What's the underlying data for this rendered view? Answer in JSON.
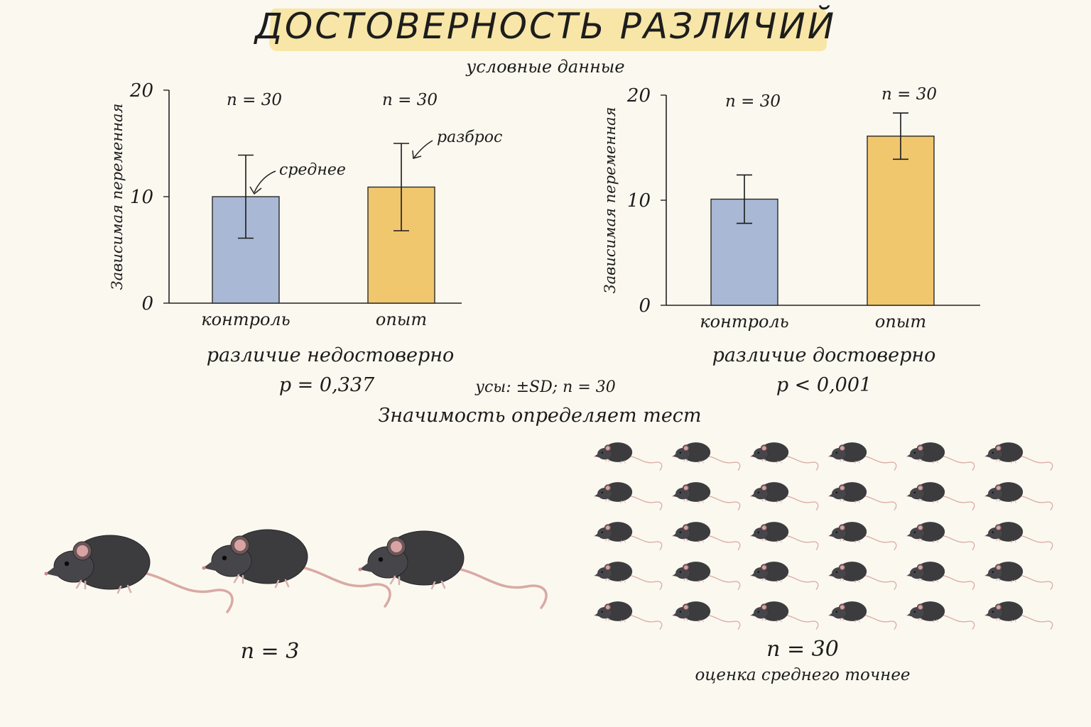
{
  "title": "ДОСТОВЕРНОСТЬ РАЗЛИЧИЙ",
  "subtitle": "условные данные",
  "chart_data": [
    {
      "type": "bar",
      "ylabel": "Зависимая переменная",
      "ylim": [
        0,
        20
      ],
      "yticks": [
        0,
        10,
        20
      ],
      "categories": [
        "контроль",
        "опыт"
      ],
      "values": [
        10,
        10.9
      ],
      "error": [
        3.9,
        4.1
      ],
      "n_labels": [
        "n = 30",
        "n = 30"
      ],
      "colors": [
        "#a9b8d4",
        "#f1c76e"
      ],
      "annotations": [
        "среднее",
        "разброс"
      ],
      "caption": "различие недостоверно",
      "p_value": "p = 0,337"
    },
    {
      "type": "bar",
      "ylabel": "Зависимая переменная",
      "ylim": [
        0,
        20
      ],
      "yticks": [
        0,
        10,
        20
      ],
      "categories": [
        "контроль",
        "опыт"
      ],
      "values": [
        10.1,
        16.1
      ],
      "error": [
        2.3,
        2.2
      ],
      "n_labels": [
        "n = 30",
        "n = 30"
      ],
      "colors": [
        "#a9b8d4",
        "#f1c76e"
      ],
      "caption": "различие достоверно",
      "p_value": "p < 0,001"
    }
  ],
  "whisker_note": "усы: ±SD;  n = 30",
  "significance_note": "Значимость определяет тест",
  "mice_small": {
    "count": 3,
    "label": "n = 3"
  },
  "mice_large": {
    "count": 30,
    "label": "n = 30",
    "note": "оценка среднего точнее"
  }
}
